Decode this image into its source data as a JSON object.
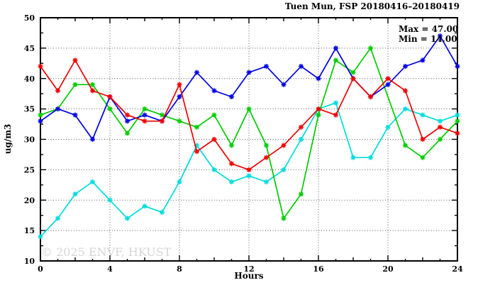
{
  "title": "Tuen Mun, FSP 20180416–20180419",
  "watermark": "© 2025 ENVF, HKUST",
  "chart_data": {
    "type": "line",
    "title": "Tuen Mun, FSP 20180416–20180419",
    "xlabel": "Hours",
    "ylabel": "ug/m3",
    "xlim": [
      0,
      24
    ],
    "ylim": [
      10,
      50
    ],
    "x_major_ticks": [
      0,
      4,
      8,
      12,
      16,
      20,
      24
    ],
    "y_major_ticks": [
      10,
      15,
      20,
      25,
      30,
      35,
      40,
      45,
      50
    ],
    "y_minor_step": 2.5,
    "grid": true,
    "legend": "none",
    "annotations": {
      "max": "Max = 47.00",
      "min": "Min = 14.00"
    },
    "x": [
      0,
      1,
      2,
      3,
      4,
      5,
      6,
      7,
      8,
      9,
      10,
      11,
      12,
      13,
      14,
      15,
      16,
      17,
      18,
      19,
      20,
      21,
      22,
      23,
      24
    ],
    "series": [
      {
        "name": "cyan",
        "color": "#00dcdc",
        "values": [
          14,
          17,
          21,
          23,
          20,
          17,
          19,
          18,
          23,
          29,
          25,
          23,
          24,
          23,
          25,
          30,
          35,
          36,
          27,
          27,
          32,
          35,
          34,
          33,
          34
        ]
      },
      {
        "name": "green",
        "color": "#00cc00",
        "values": [
          34,
          35,
          39,
          39,
          35,
          31,
          35,
          34,
          33,
          32,
          34,
          29,
          35,
          29,
          17,
          21,
          34,
          43,
          41,
          45,
          null,
          29,
          27,
          30,
          33
        ]
      },
      {
        "name": "blue",
        "color": "#0000e6",
        "values": [
          33,
          35,
          34,
          30,
          37,
          33,
          34,
          33,
          37,
          41,
          38,
          37,
          41,
          42,
          39,
          42,
          40,
          45,
          40,
          37,
          39,
          42,
          43,
          47,
          42
        ]
      },
      {
        "name": "red",
        "color": "#f00000",
        "values": [
          42,
          38,
          43,
          38,
          37,
          34,
          33,
          33,
          39,
          28,
          30,
          26,
          25,
          27,
          29,
          32,
          35,
          34,
          40,
          37,
          40,
          38,
          30,
          32,
          31
        ]
      }
    ]
  }
}
